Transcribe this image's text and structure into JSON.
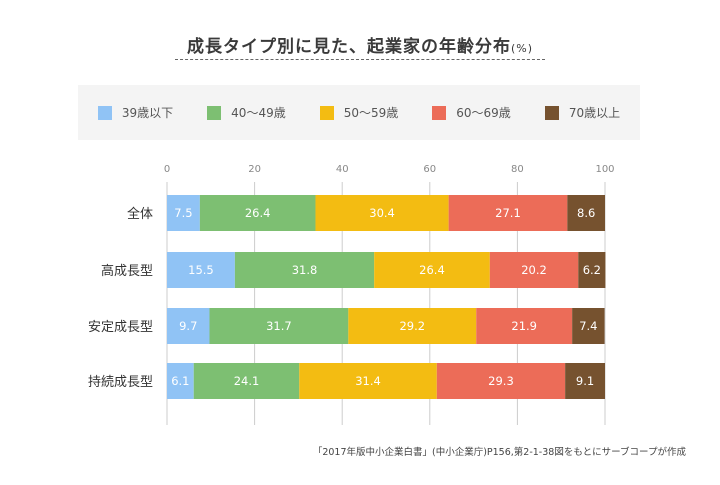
{
  "title": "成長タイプ別に見た、起業家の年齢分布",
  "title_unit": "(%)",
  "source": "「2017年版中小企業白書」(中小企業庁)P156,第2-1-38図をもとにサーブコープが作成",
  "chart_data": {
    "type": "bar",
    "orientation": "horizontal",
    "stacked": true,
    "categories": [
      "全体",
      "高成長型",
      "安定成長型",
      "持続成長型"
    ],
    "xlim": [
      0,
      100
    ],
    "xticks": [
      "0",
      "20",
      "40",
      "60",
      "80",
      "100"
    ],
    "grid": true,
    "legend_placement": "top",
    "series": [
      {
        "name": "39歳以下",
        "color": "#90c3f5",
        "values": [
          7.5,
          15.5,
          9.7,
          6.1
        ]
      },
      {
        "name": "40〜49歳",
        "color": "#7dbf72",
        "values": [
          26.4,
          31.8,
          31.7,
          24.1
        ]
      },
      {
        "name": "50〜59歳",
        "color": "#f3bc12",
        "values": [
          30.4,
          26.4,
          29.2,
          31.4
        ]
      },
      {
        "name": "60〜69歳",
        "color": "#ec6c58",
        "values": [
          27.1,
          20.2,
          21.9,
          29.3
        ]
      },
      {
        "name": "70歳以上",
        "color": "#76522f",
        "values": [
          8.6,
          6.2,
          7.4,
          9.1
        ]
      }
    ]
  }
}
